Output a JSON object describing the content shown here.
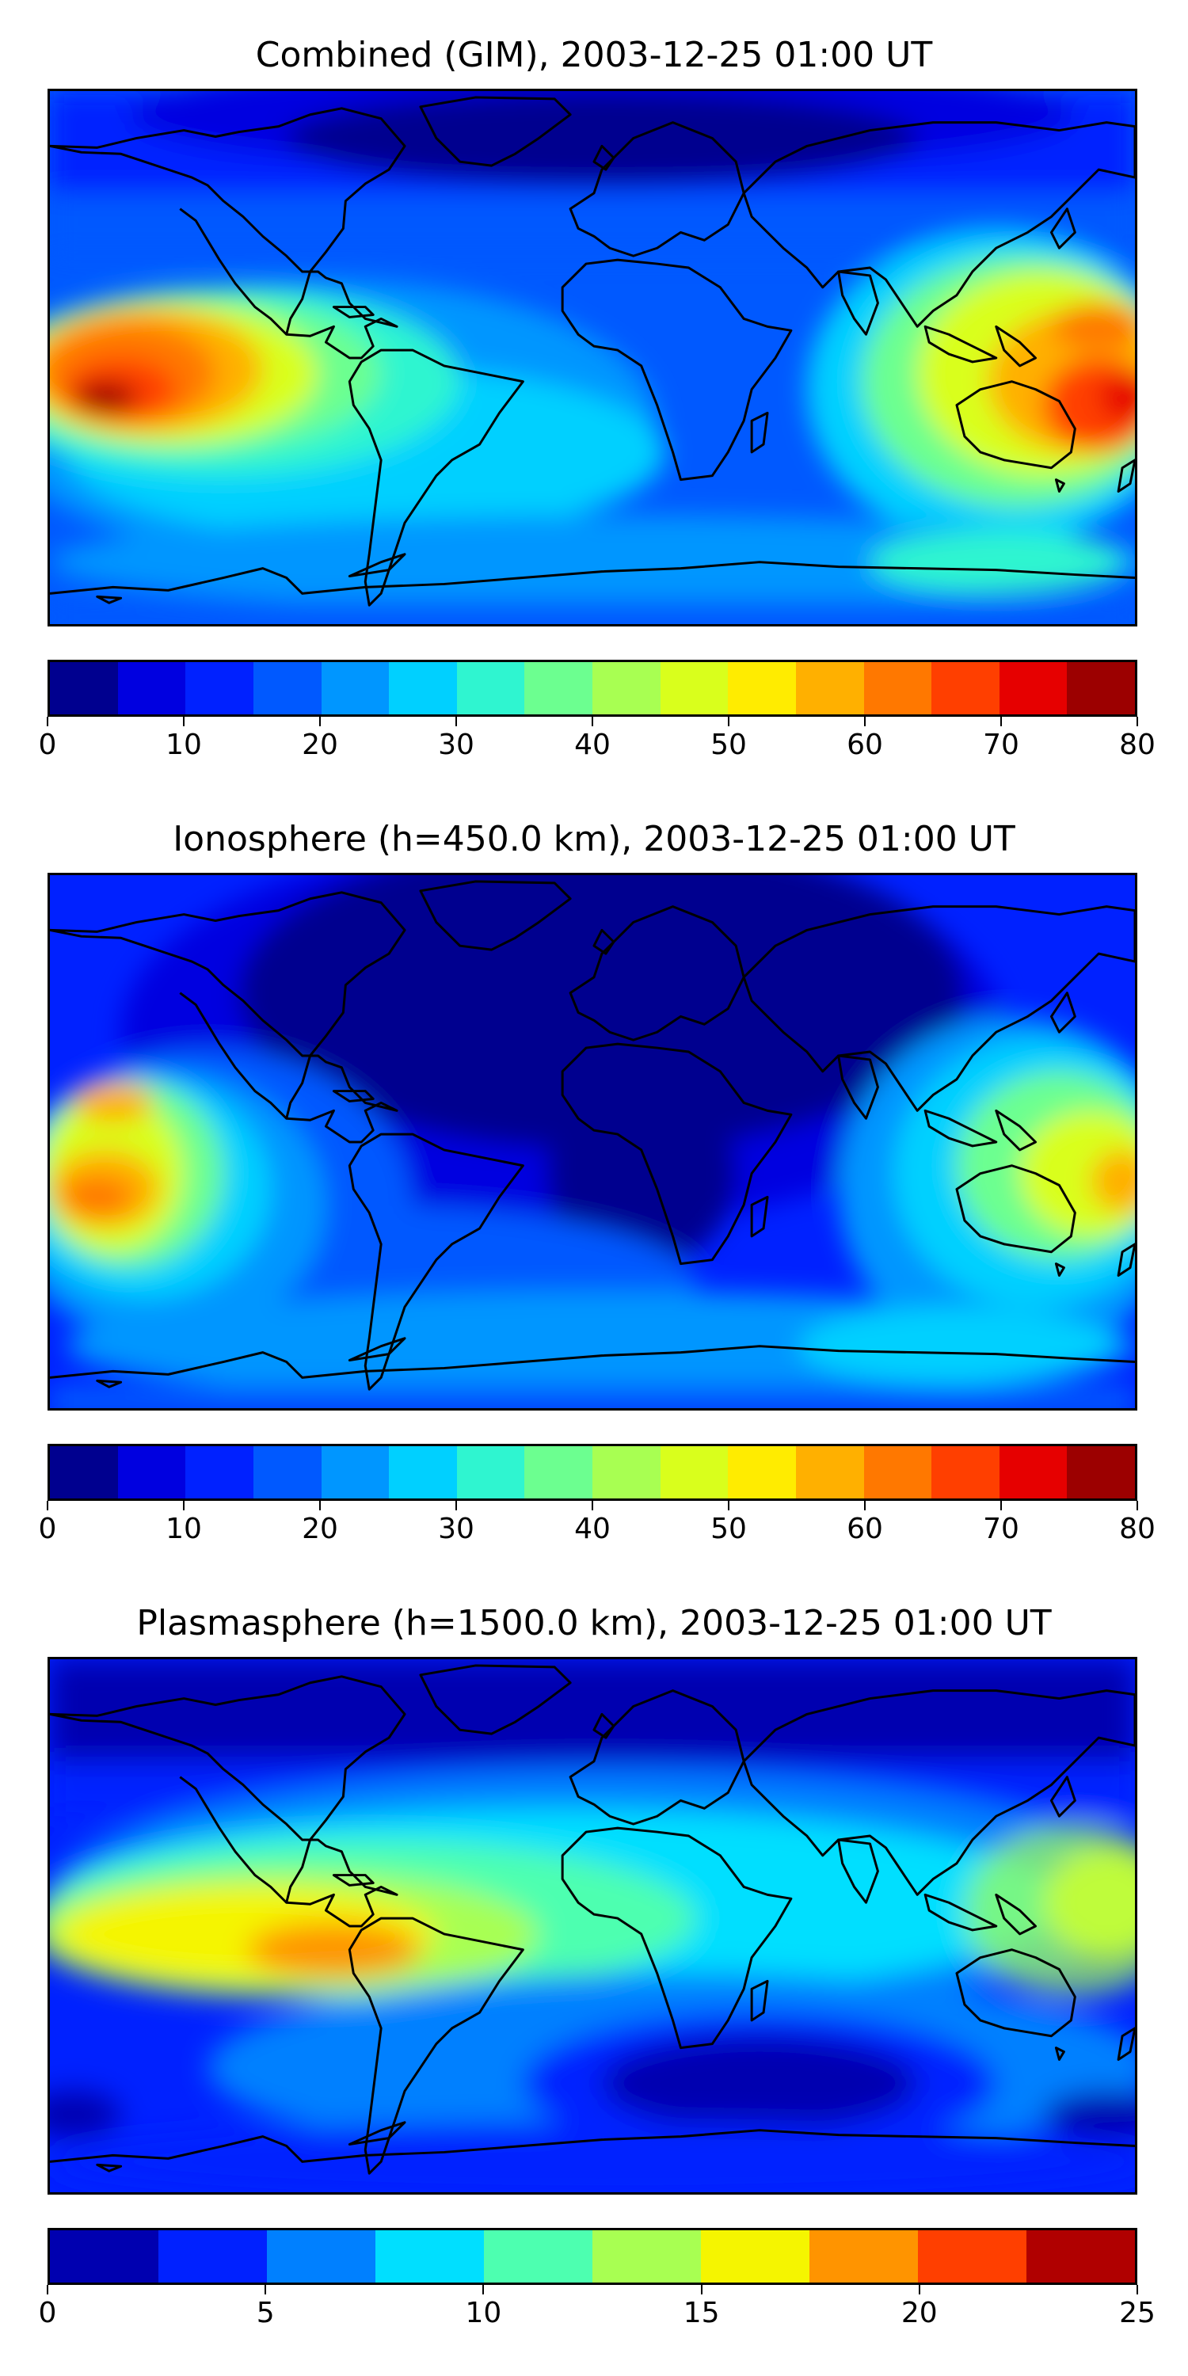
{
  "panels": [
    {
      "id": "combined",
      "title": "Combined (GIM), 2003-12-25 01:00 UT",
      "colorbar": {
        "ticks": [
          "0",
          "10",
          "20",
          "30",
          "40",
          "50",
          "60",
          "70",
          "80"
        ],
        "colors": [
          "#00008f",
          "#0000e0",
          "#0021ff",
          "#0059ff",
          "#0096ff",
          "#00d0ff",
          "#2ff5d0",
          "#6cff90",
          "#a8ff52",
          "#d9ff1c",
          "#ffec00",
          "#ffb000",
          "#ff7800",
          "#ff3f00",
          "#e60000",
          "#9c0000"
        ]
      }
    },
    {
      "id": "ionosphere",
      "title": "Ionosphere  (h=450.0 km), 2003-12-25 01:00 UT",
      "colorbar": {
        "ticks": [
          "0",
          "10",
          "20",
          "30",
          "40",
          "50",
          "60",
          "70",
          "80"
        ],
        "colors": [
          "#00008f",
          "#0000e0",
          "#0021ff",
          "#0059ff",
          "#0096ff",
          "#00d0ff",
          "#2ff5d0",
          "#6cff90",
          "#a8ff52",
          "#d9ff1c",
          "#ffec00",
          "#ffb000",
          "#ff7800",
          "#ff3f00",
          "#e60000",
          "#9c0000"
        ]
      }
    },
    {
      "id": "plasmasphere",
      "title": "Plasmasphere (h=1500.0 km), 2003-12-25 01:00 UT",
      "colorbar": {
        "ticks": [
          "0",
          "5",
          "10",
          "15",
          "20",
          "25"
        ],
        "colors": [
          "#0000b0",
          "#0021ff",
          "#0080ff",
          "#00dfff",
          "#4dffb0",
          "#a8ff52",
          "#f5f500",
          "#ff9400",
          "#ff3f00",
          "#b00000"
        ]
      }
    }
  ]
}
